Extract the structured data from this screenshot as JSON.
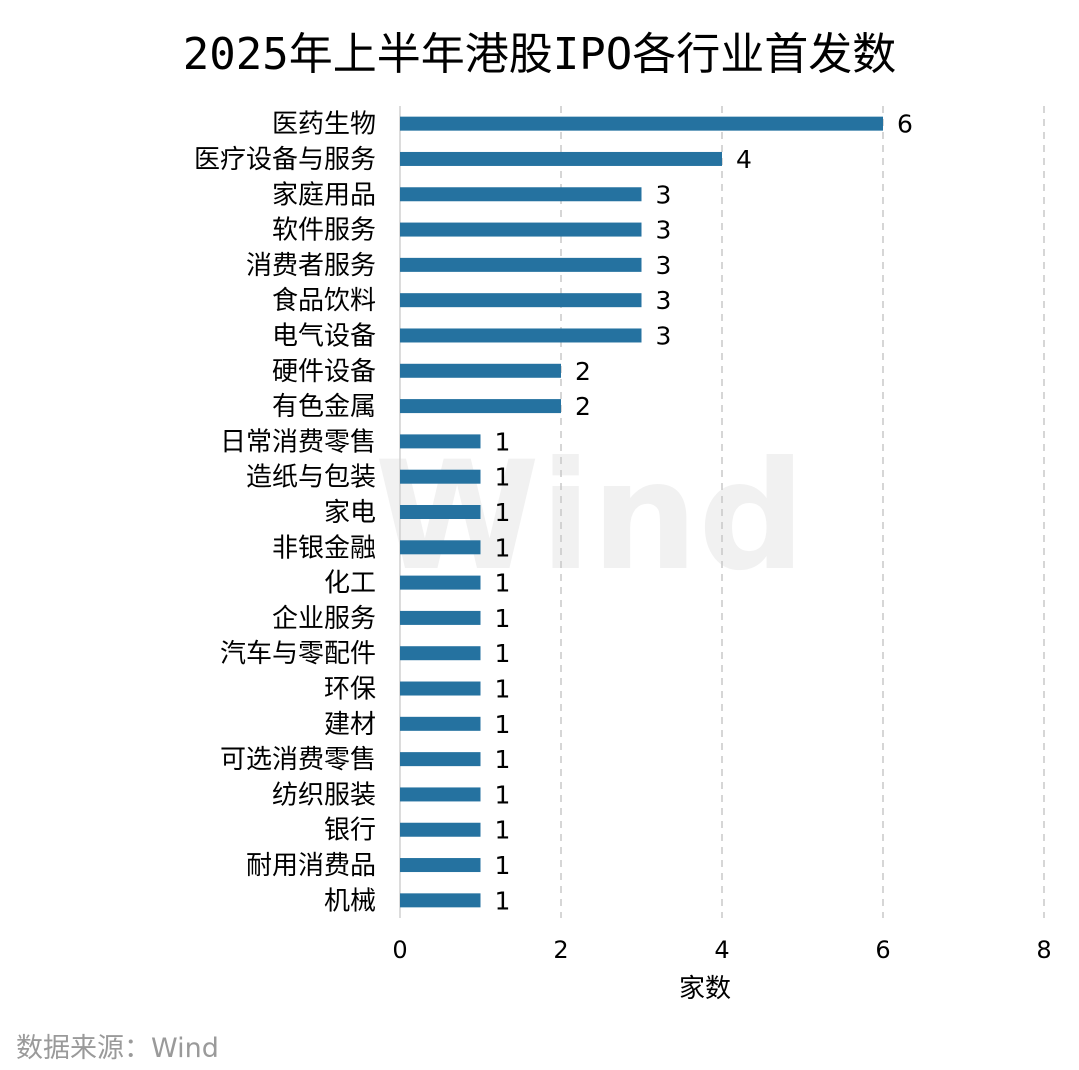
{
  "title": "2025年上半年港股IPO各行业首发数",
  "source": "数据来源：Wind",
  "watermark": "Wind",
  "chart_data": {
    "type": "bar",
    "orientation": "horizontal",
    "title": "2025年上半年港股IPO各行业首发数",
    "xlabel": "家数",
    "ylabel": "",
    "xlim": [
      0,
      8
    ],
    "xticks": [
      0,
      2,
      4,
      6,
      8
    ],
    "grid": "vertical dashed",
    "bar_color": "#2572a0",
    "categories": [
      "医药生物",
      "医疗设备与服务",
      "家庭用品",
      "软件服务",
      "消费者服务",
      "食品饮料",
      "电气设备",
      "硬件设备",
      "有色金属",
      "日常消费零售",
      "造纸与包装",
      "家电",
      "非银金融",
      "化工",
      "企业服务",
      "汽车与零配件",
      "环保",
      "建材",
      "可选消费零售",
      "纺织服装",
      "银行",
      "耐用消费品",
      "机械"
    ],
    "values": [
      6,
      4,
      3,
      3,
      3,
      3,
      3,
      2,
      2,
      1,
      1,
      1,
      1,
      1,
      1,
      1,
      1,
      1,
      1,
      1,
      1,
      1,
      1
    ]
  }
}
